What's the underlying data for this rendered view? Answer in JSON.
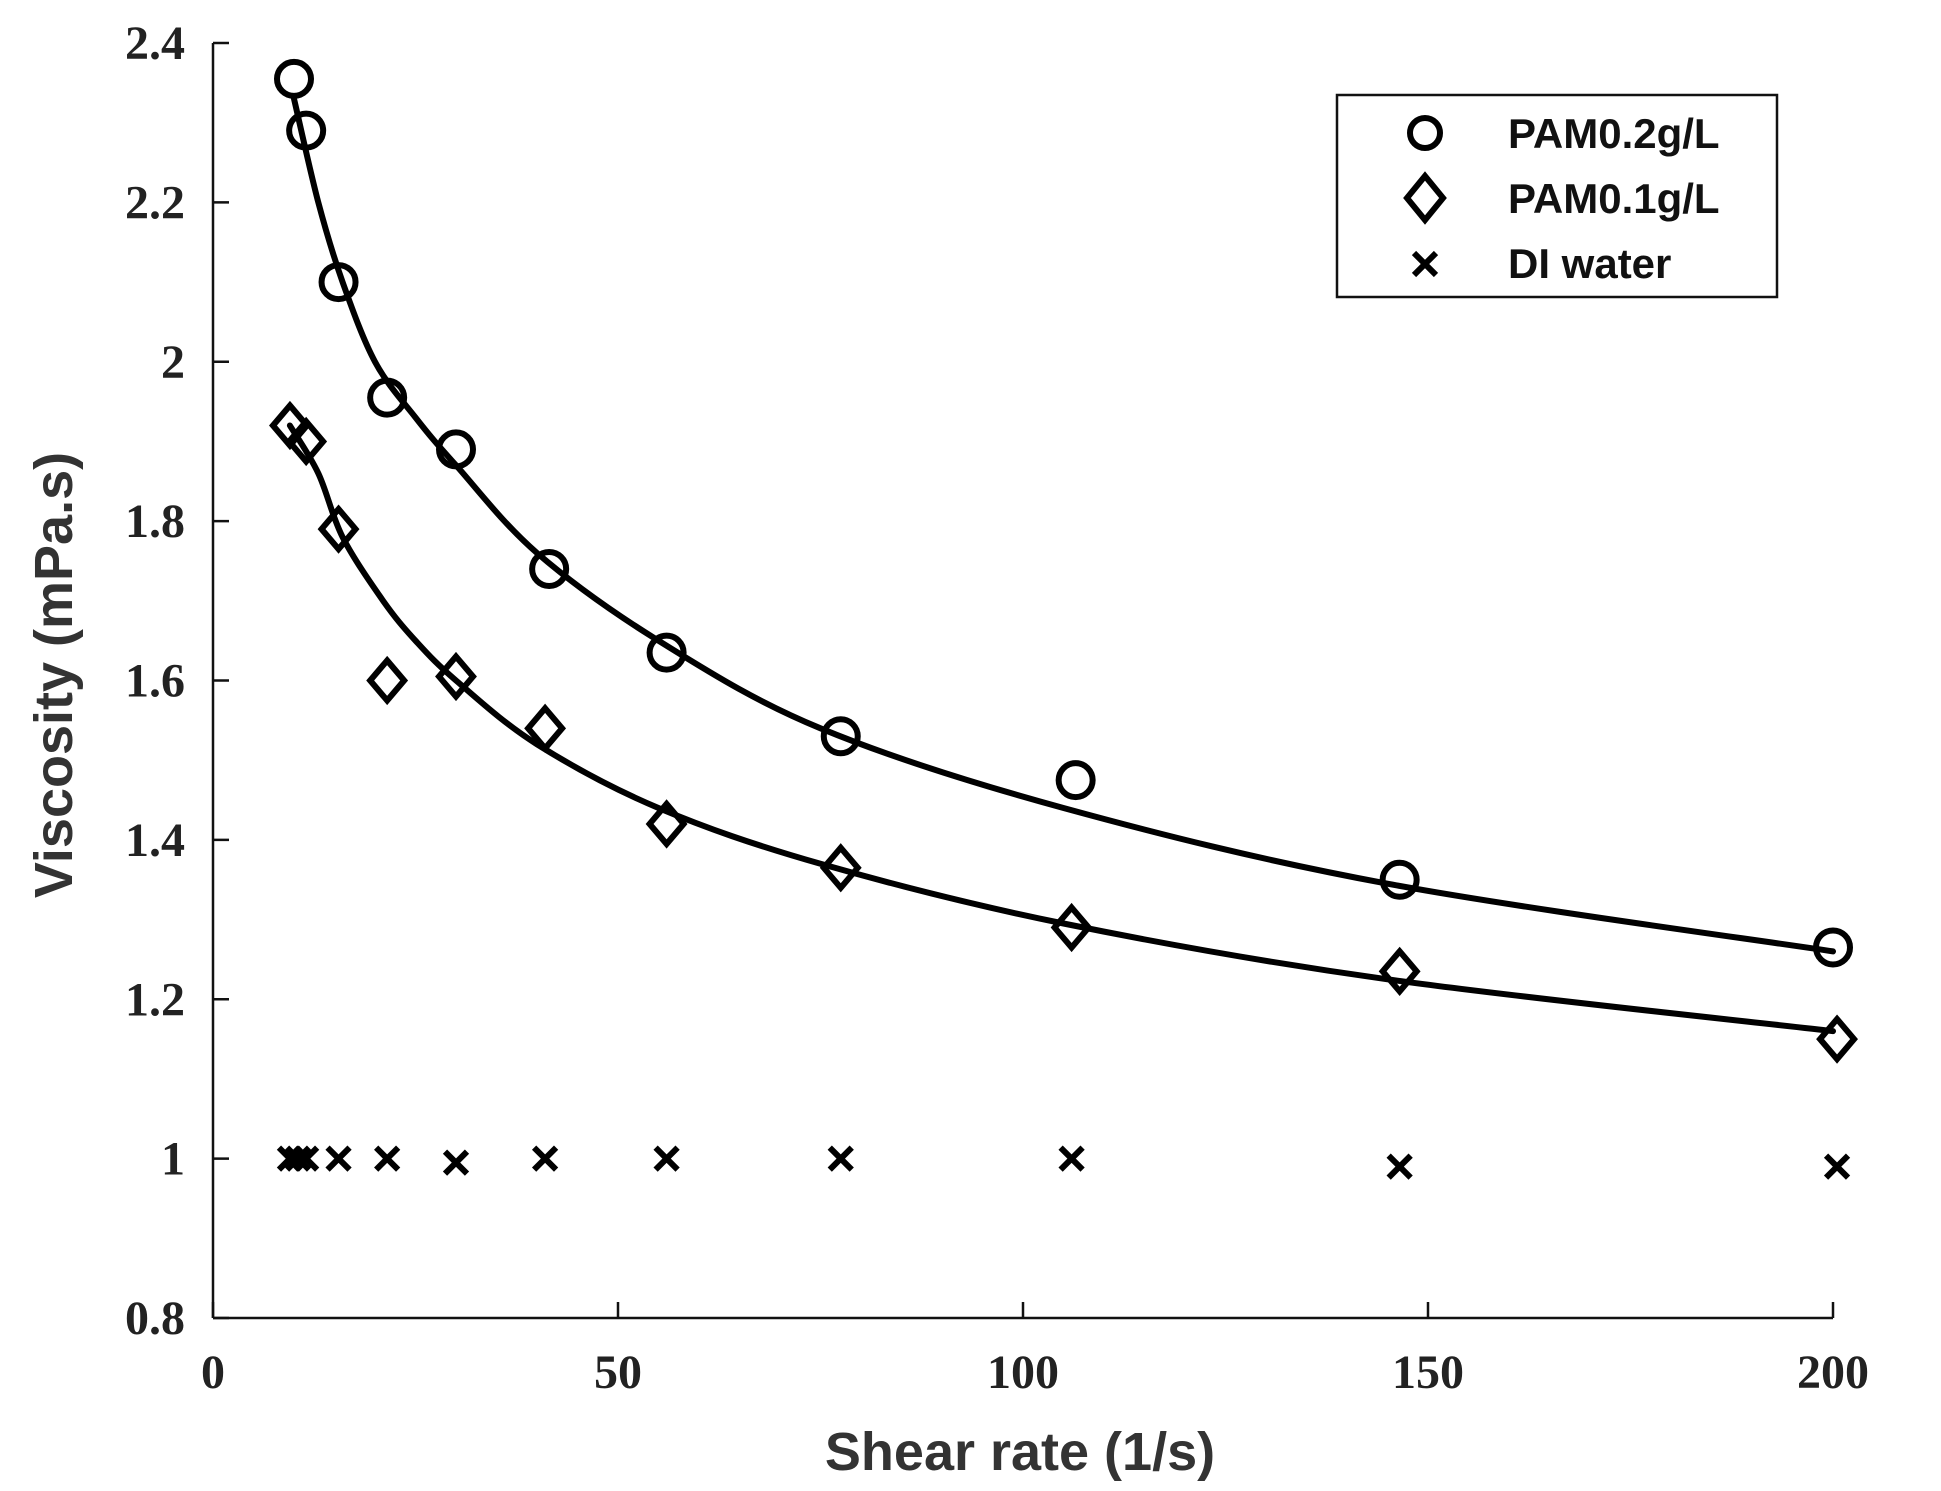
{
  "chart_data": {
    "type": "scatter",
    "title": "",
    "xlabel": "Shear rate  (1/s)",
    "ylabel": "Viscosity  (mPa.s)",
    "xlim": [
      0,
      200
    ],
    "ylim": [
      0.8,
      2.4
    ],
    "xticks": [
      0,
      50,
      100,
      150,
      200
    ],
    "xtick_labels": [
      "0",
      "50",
      "100",
      "150",
      "200"
    ],
    "yticks": [
      0.8,
      1,
      1.2,
      1.4,
      1.6,
      1.8,
      2,
      2.2,
      2.4
    ],
    "ytick_labels": [
      "0.8",
      "1",
      "1.2",
      "1.4",
      "1.6",
      "1.8",
      "2",
      "2.2",
      "2.4"
    ],
    "grid": false,
    "legend_position": "top-right",
    "series": [
      {
        "name": "PAM0.2g/L",
        "marker": "circle",
        "x": [
          10,
          11.5,
          15.5,
          21.5,
          30,
          41.5,
          56,
          77.5,
          106.5,
          146.5,
          200
        ],
        "y": [
          2.355,
          2.29,
          2.1,
          1.955,
          1.89,
          1.74,
          1.635,
          1.53,
          1.475,
          1.35,
          1.265
        ],
        "fit": {
          "x": [
            10,
            13,
            16,
            20,
            25,
            30,
            40,
            55,
            75,
            105,
            145,
            200
          ],
          "y": [
            2.33,
            2.2,
            2.1,
            2.0,
            1.93,
            1.87,
            1.76,
            1.65,
            1.54,
            1.44,
            1.345,
            1.26
          ]
        }
      },
      {
        "name": "PAM0.1g/L",
        "marker": "diamond",
        "x": [
          9.5,
          11.5,
          15.5,
          21.5,
          30,
          41,
          56,
          77.5,
          106,
          146.5,
          200.5
        ],
        "y": [
          1.92,
          1.9,
          1.79,
          1.6,
          1.605,
          1.54,
          1.42,
          1.365,
          1.29,
          1.235,
          1.15
        ],
        "fit": {
          "x": [
            9.5,
            13,
            16,
            21,
            25,
            30,
            40,
            55,
            75,
            105,
            145,
            200
          ],
          "y": [
            1.92,
            1.86,
            1.78,
            1.7,
            1.65,
            1.6,
            1.52,
            1.44,
            1.37,
            1.295,
            1.225,
            1.16
          ]
        }
      },
      {
        "name": "DI water",
        "marker": "x",
        "x": [
          9.5,
          10.5,
          11.5,
          15.5,
          21.5,
          30,
          41,
          56,
          77.5,
          106,
          146.5,
          200.5
        ],
        "y": [
          1.0,
          1.0,
          1.0,
          1.0,
          1.0,
          0.995,
          1.0,
          1.0,
          1.0,
          1.0,
          0.99,
          0.99
        ]
      }
    ]
  }
}
